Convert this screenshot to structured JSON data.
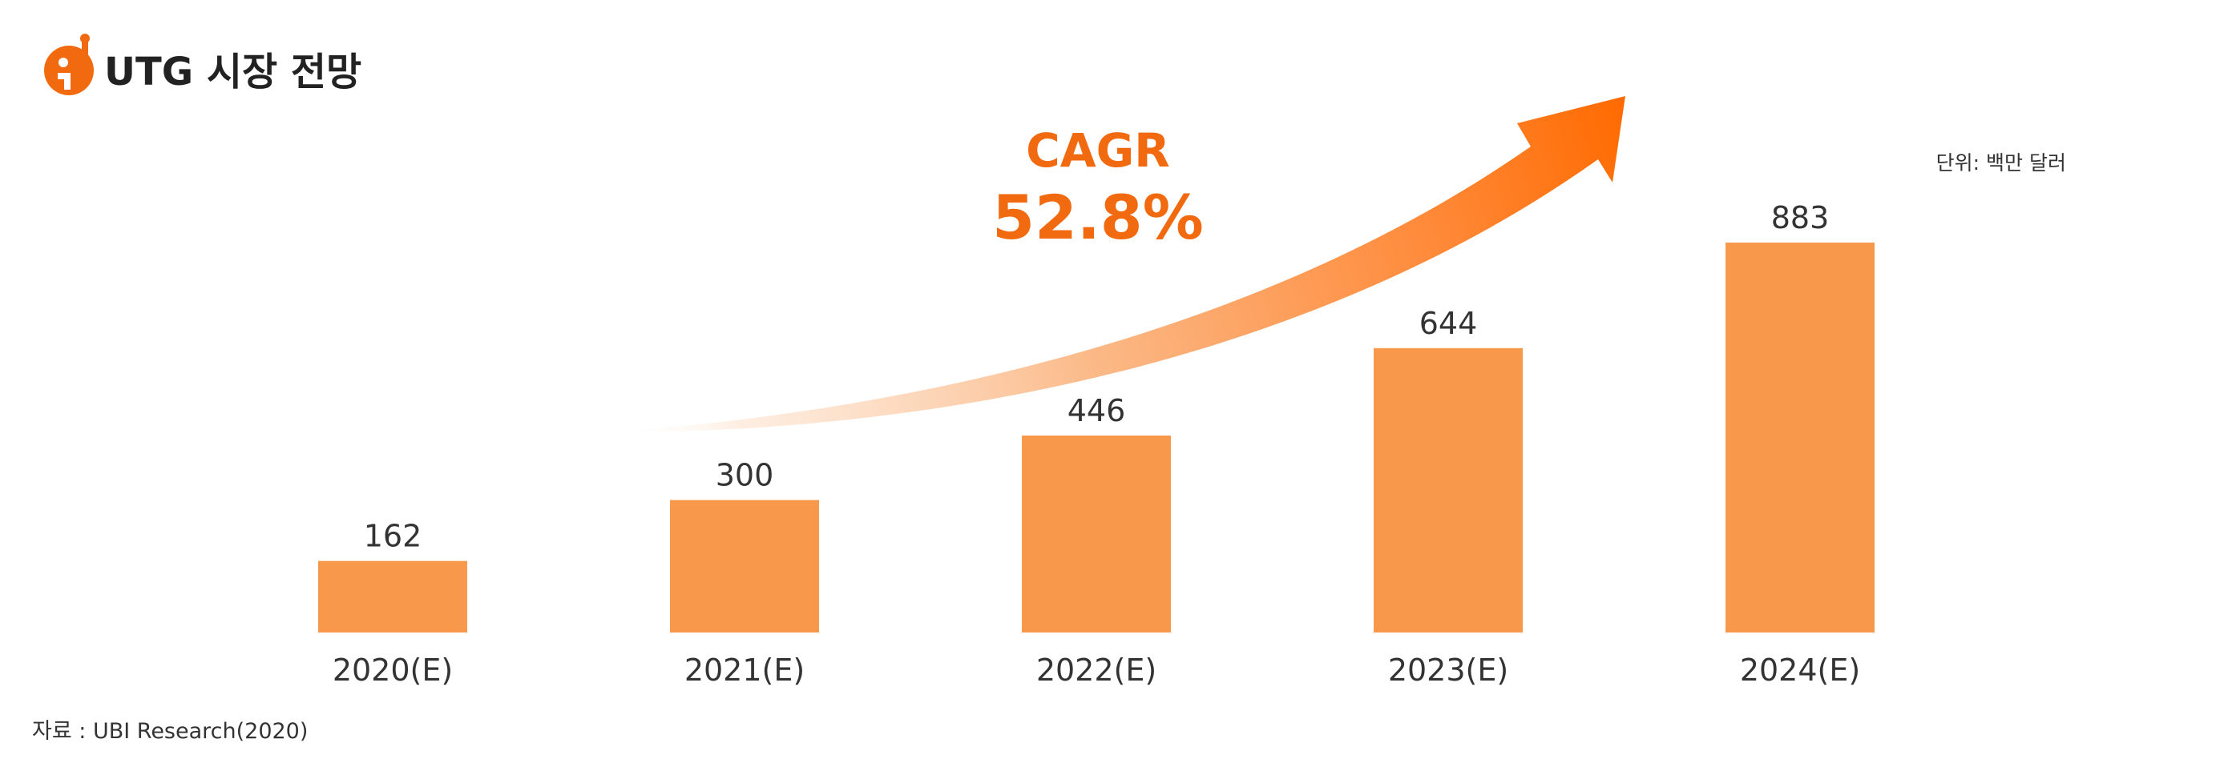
{
  "header": {
    "logo_icon": "orange-i-info-icon",
    "title": "UTG 시장 전망"
  },
  "annotation": {
    "label": "CAGR",
    "value": "52.8%"
  },
  "unit_note": "단위: 백만 달러",
  "source_note": "자료 : UBI Research(2020)",
  "colors": {
    "bar": "#f7984a",
    "accent": "#f26a10",
    "arrow_start": "#ffffff",
    "arrow_end": "#ff6a00",
    "text": "#333333"
  },
  "chart_data": {
    "type": "bar",
    "categories": [
      "2020(E)",
      "2021(E)",
      "2022(E)",
      "2023(E)",
      "2024(E)"
    ],
    "values": [
      162,
      300,
      446,
      644,
      883
    ],
    "data_labels": [
      "162",
      "300",
      "446",
      "644",
      "883"
    ],
    "title": "UTG 시장 전망",
    "ylim": [
      0,
      883
    ],
    "grid": false,
    "legend": "none"
  }
}
